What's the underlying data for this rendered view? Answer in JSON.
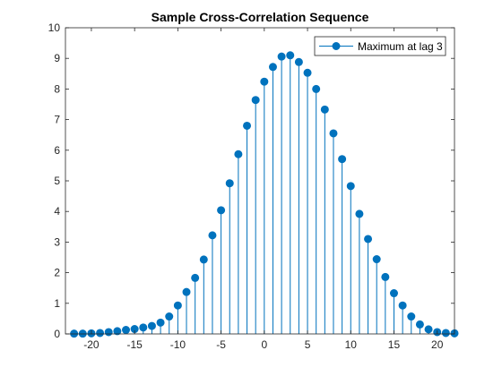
{
  "chart_data": {
    "type": "stem",
    "title": "Sample Cross-Correlation Sequence",
    "xlabel": "",
    "ylabel": "",
    "xlim": [
      -23,
      22
    ],
    "ylim": [
      0,
      10
    ],
    "x_ticks": [
      -20,
      -15,
      -10,
      -5,
      0,
      5,
      10,
      15,
      20
    ],
    "y_ticks": [
      0,
      1,
      2,
      3,
      4,
      5,
      6,
      7,
      8,
      9,
      10
    ],
    "grid": false,
    "legend_position": "top-right",
    "colors": {
      "series": "#0072bd",
      "axis": "#262626"
    },
    "series": [
      {
        "name": "Maximum at lag 3",
        "x": [
          -22,
          -21,
          -20,
          -19,
          -18,
          -17,
          -16,
          -15,
          -14,
          -13,
          -12,
          -11,
          -10,
          -9,
          -8,
          -7,
          -6,
          -5,
          -4,
          -3,
          -2,
          -1,
          0,
          1,
          2,
          3,
          4,
          5,
          6,
          7,
          8,
          9,
          10,
          11,
          12,
          13,
          14,
          15,
          16,
          17,
          18,
          19,
          20,
          21,
          22
        ],
        "y": [
          0.01,
          0.01,
          0.02,
          0.03,
          0.06,
          0.09,
          0.13,
          0.16,
          0.21,
          0.26,
          0.37,
          0.57,
          0.93,
          1.37,
          1.83,
          2.43,
          3.22,
          4.04,
          4.92,
          5.87,
          6.8,
          7.64,
          8.24,
          8.72,
          9.06,
          9.1,
          8.88,
          8.53,
          8.0,
          7.33,
          6.55,
          5.71,
          4.83,
          3.92,
          3.1,
          2.44,
          1.86,
          1.33,
          0.93,
          0.57,
          0.31,
          0.15,
          0.06,
          0.03,
          0.02
        ]
      }
    ]
  }
}
